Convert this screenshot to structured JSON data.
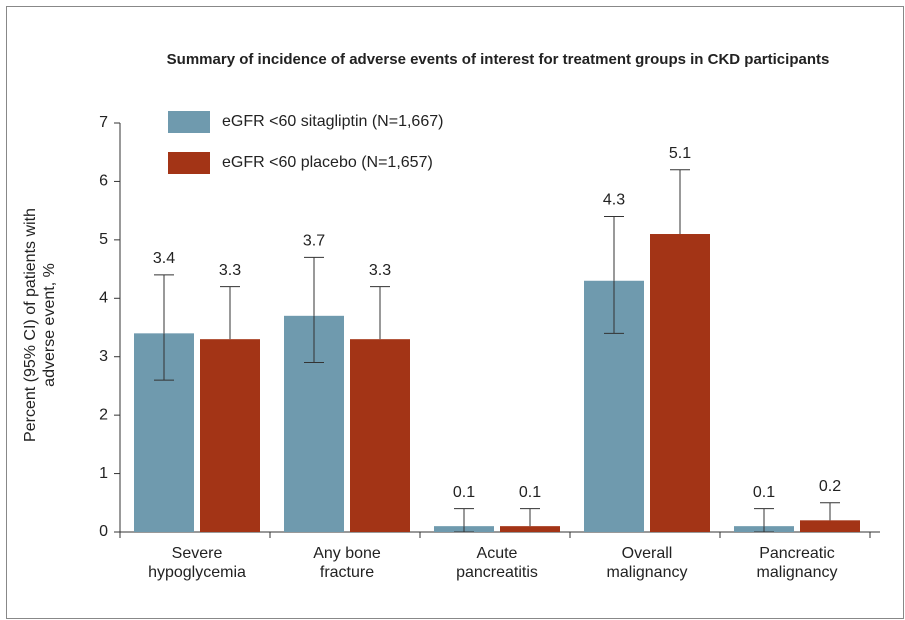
{
  "chart_data": {
    "type": "bar",
    "title": "Summary of incidence of adverse events of interest for treatment groups in CKD participants",
    "ylabel": [
      "Percent (95% CI) of patients with",
      "adverse event, %"
    ],
    "categories": [
      "Severe hypoglycemia",
      "Any bone fracture",
      "Acute pancreatitis",
      "Overall malignancy",
      "Pancreatic malignancy"
    ],
    "series": [
      {
        "name": "eGFR <60 sitagliptin (N=1,667)",
        "color": "#6f9aae",
        "values": [
          3.4,
          3.7,
          0.1,
          4.3,
          0.1
        ],
        "ci_lower": [
          2.6,
          2.9,
          0,
          3.4,
          0
        ],
        "ci_upper": [
          4.4,
          4.7,
          0.4,
          5.4,
          0.4
        ]
      },
      {
        "name": "eGFR <60 placebo (N=1,657)",
        "color": "#a33416",
        "values": [
          3.3,
          3.3,
          0.1,
          5.1,
          0.2
        ],
        "ci_lower": [
          null,
          null,
          null,
          null,
          null
        ],
        "ci_upper": [
          4.2,
          4.2,
          0.4,
          6.2,
          0.5
        ]
      }
    ],
    "ylim": [
      0,
      7
    ],
    "yticks": [
      0,
      1,
      2,
      3,
      4,
      5,
      6,
      7
    ]
  }
}
